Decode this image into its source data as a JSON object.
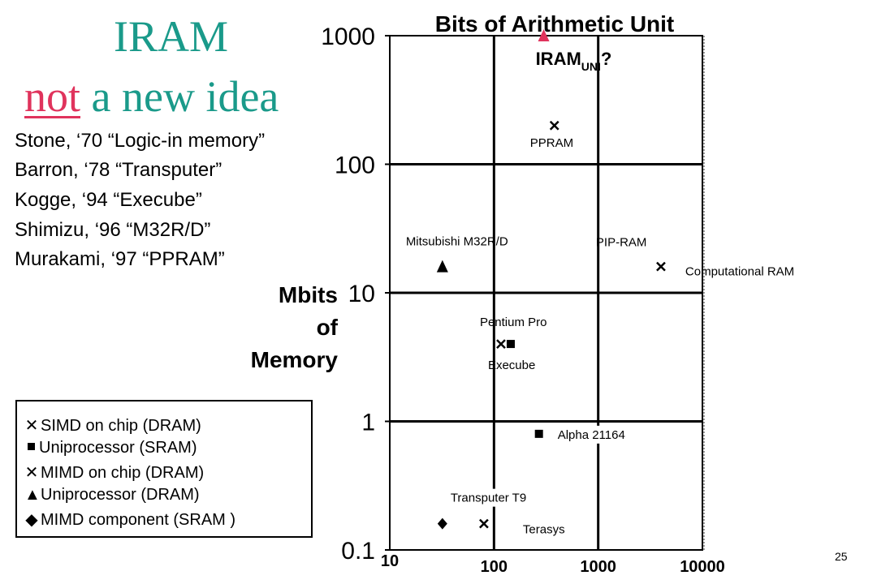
{
  "slide": {
    "title_line1": "IRAM",
    "title_line2_not": "not",
    "title_line2_rest": " a new idea",
    "history": [
      "Stone, ‘70 “Logic-in memory”",
      "Barron, ‘78 “Transputer”",
      "Kogge, ‘94 “Execube”",
      "Shimizu, ‘96 “M32R/D”",
      "Murakami, ‘97 “PPRAM”"
    ],
    "page_number": "25",
    "colors": {
      "title": "#1a9a8a",
      "not": "#e0335c",
      "iram_marker": "#e0335c"
    }
  },
  "legend": [
    {
      "symbol": "x-icon",
      "label": "SIMD on chip (DRAM)"
    },
    {
      "symbol": "square-icon",
      "label": "Uniprocessor (SRAM)"
    },
    {
      "symbol": "x-icon",
      "label": "MIMD on chip (DRAM)"
    },
    {
      "symbol": "triangle-icon",
      "label": "Uniprocessor (DRAM)"
    },
    {
      "symbol": "diamond-icon",
      "label": "MIMD component (SRAM )"
    }
  ],
  "chart_data": {
    "type": "scatter",
    "title": "Bits of Arithmetic Unit",
    "ylabel": "Mbits of Memory",
    "ylabel_lines": [
      "Mbits",
      "of",
      "Memory"
    ],
    "x_scale": "log",
    "y_scale": "log",
    "xlim": [
      10,
      10000
    ],
    "ylim": [
      0.1,
      1000
    ],
    "x_ticks": [
      "10",
      "100",
      "1000",
      "10000"
    ],
    "y_ticks": [
      "0.1",
      "1",
      "10",
      "100",
      "1000"
    ],
    "grid": true,
    "points": [
      {
        "label": "IRAM",
        "label_sub": "UNI",
        "label_suffix": "?",
        "x": 300,
        "y": 1000,
        "marker": "triangle",
        "color": "#e0335c"
      },
      {
        "label": "PPRAM",
        "x": 380,
        "y": 200,
        "marker": "x"
      },
      {
        "label": "Mitsubishi M32R/D",
        "x": 32,
        "y": 16,
        "marker": "triangle"
      },
      {
        "label": "PIP-RAM",
        "x": 4000,
        "y": 16,
        "marker": "x"
      },
      {
        "label": "Computational RAM",
        "x": 4000,
        "y": 16,
        "marker": "x"
      },
      {
        "label": "Pentium Pro",
        "x": 160,
        "y": 4,
        "marker": "square"
      },
      {
        "label": "Execube",
        "x": 130,
        "y": 4,
        "marker": "x"
      },
      {
        "label": "Alpha 21164",
        "x": 270,
        "y": 0.8,
        "marker": "square"
      },
      {
        "label": "Transputer T9",
        "x": 32,
        "y": 0.16,
        "marker": "diamond"
      },
      {
        "label": "Terasys",
        "x": 80,
        "y": 0.16,
        "marker": "x"
      }
    ]
  }
}
